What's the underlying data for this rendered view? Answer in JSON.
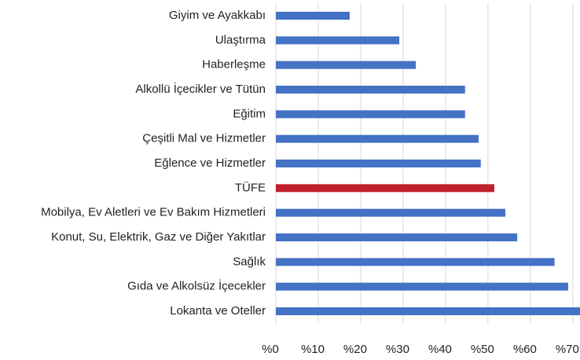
{
  "chart_data": {
    "type": "barh",
    "categories": [
      "Giyim ve Ayakkabı",
      "Ulaştırma",
      "Haberleşme",
      "Alkollü İçecikler ve Tütün",
      "Eğitim",
      "Çeşitli Mal ve Hizmetler",
      "Eğlence ve Hizmetler",
      "TÜFE",
      "Mobilya, Ev Aletleri ve Ev Bakım Hizmetleri",
      "Konut, Su, Elektrik, Gaz ve Diğer Yakıtlar",
      "Sağlık",
      "Gıda ve Alkolsüz İçecekler",
      "Lokanta ve Oteller"
    ],
    "values": [
      17.4,
      29.1,
      33.0,
      44.6,
      44.6,
      47.8,
      48.3,
      51.5,
      54.1,
      56.9,
      65.7,
      68.9,
      71.7
    ],
    "colors": [
      "#4472c4",
      "#4472c4",
      "#4472c4",
      "#4472c4",
      "#4472c4",
      "#4472c4",
      "#4472c4",
      "#c0202a",
      "#4472c4",
      "#4472c4",
      "#4472c4",
      "#4472c4",
      "#4472c4"
    ],
    "xlim": [
      0,
      71.7
    ],
    "xticks": [
      {
        "value": 0,
        "label": "%0"
      },
      {
        "value": 10,
        "label": "%10"
      },
      {
        "value": 20,
        "label": "%20"
      },
      {
        "value": 30,
        "label": "%30"
      },
      {
        "value": 40,
        "label": "%40"
      },
      {
        "value": 50,
        "label": "%50"
      },
      {
        "value": 60,
        "label": "%60"
      },
      {
        "value": 70,
        "label": "%70"
      }
    ],
    "grid": true
  }
}
